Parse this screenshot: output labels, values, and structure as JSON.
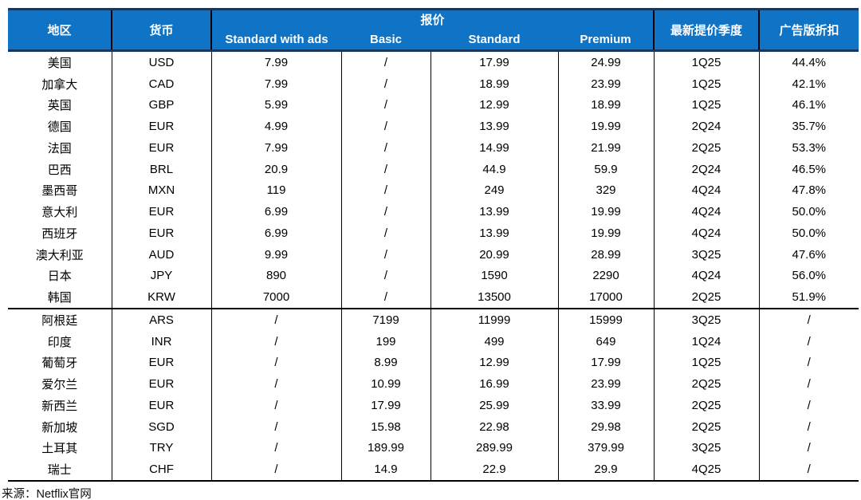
{
  "colors": {
    "header_bg": "#0f73c6",
    "header_text": "#ffffff",
    "header_frame": "#17375e",
    "grid_line": "#000000"
  },
  "header": {
    "col_region": "地区",
    "col_currency": "货币",
    "group_price": "报价",
    "col_standard_with_ads": "Standard with ads",
    "col_basic": "Basic",
    "col_standard": "Standard",
    "col_premium": "Premium",
    "col_latest_hike_quarter": "最新提价季度",
    "col_ads_discount": "广告版折扣"
  },
  "source_note": "来源：Netflix官网",
  "chart_data": {
    "type": "table",
    "title": "",
    "column_group": {
      "label": "报价",
      "spans": [
        "Standard with ads",
        "Basic",
        "Standard",
        "Premium"
      ]
    },
    "columns": [
      "地区",
      "货币",
      "Standard with ads",
      "Basic",
      "Standard",
      "Premium",
      "最新提价季度",
      "广告版折扣"
    ],
    "sections": [
      {
        "rows": [
          [
            "美国",
            "USD",
            "7.99",
            "/",
            "17.99",
            "24.99",
            "1Q25",
            "44.4%"
          ],
          [
            "加拿大",
            "CAD",
            "7.99",
            "/",
            "18.99",
            "23.99",
            "1Q25",
            "42.1%"
          ],
          [
            "英国",
            "GBP",
            "5.99",
            "/",
            "12.99",
            "18.99",
            "1Q25",
            "46.1%"
          ],
          [
            "德国",
            "EUR",
            "4.99",
            "/",
            "13.99",
            "19.99",
            "2Q24",
            "35.7%"
          ],
          [
            "法国",
            "EUR",
            "7.99",
            "/",
            "14.99",
            "21.99",
            "2Q25",
            "53.3%"
          ],
          [
            "巴西",
            "BRL",
            "20.9",
            "/",
            "44.9",
            "59.9",
            "2Q24",
            "46.5%"
          ],
          [
            "墨西哥",
            "MXN",
            "119",
            "/",
            "249",
            "329",
            "4Q24",
            "47.8%"
          ],
          [
            "意大利",
            "EUR",
            "6.99",
            "/",
            "13.99",
            "19.99",
            "4Q24",
            "50.0%"
          ],
          [
            "西班牙",
            "EUR",
            "6.99",
            "/",
            "13.99",
            "19.99",
            "4Q24",
            "50.0%"
          ],
          [
            "澳大利亚",
            "AUD",
            "9.99",
            "/",
            "20.99",
            "28.99",
            "3Q25",
            "47.6%"
          ],
          [
            "日本",
            "JPY",
            "890",
            "/",
            "1590",
            "2290",
            "4Q24",
            "56.0%"
          ],
          [
            "韩国",
            "KRW",
            "7000",
            "/",
            "13500",
            "17000",
            "2Q25",
            "51.9%"
          ]
        ]
      },
      {
        "rows": [
          [
            "阿根廷",
            "ARS",
            "/",
            "7199",
            "11999",
            "15999",
            "3Q25",
            "/"
          ],
          [
            "印度",
            "INR",
            "/",
            "199",
            "499",
            "649",
            "1Q24",
            "/"
          ],
          [
            "葡萄牙",
            "EUR",
            "/",
            "8.99",
            "12.99",
            "17.99",
            "1Q25",
            "/"
          ],
          [
            "爱尔兰",
            "EUR",
            "/",
            "10.99",
            "16.99",
            "23.99",
            "2Q25",
            "/"
          ],
          [
            "新西兰",
            "EUR",
            "/",
            "17.99",
            "25.99",
            "33.99",
            "2Q25",
            "/"
          ],
          [
            "新加坡",
            "SGD",
            "/",
            "15.98",
            "22.98",
            "29.98",
            "2Q25",
            "/"
          ],
          [
            "土耳其",
            "TRY",
            "/",
            "189.99",
            "289.99",
            "379.99",
            "3Q25",
            "/"
          ],
          [
            "瑞士",
            "CHF",
            "/",
            "14.9",
            "22.9",
            "29.9",
            "4Q25",
            "/"
          ]
        ]
      }
    ]
  }
}
